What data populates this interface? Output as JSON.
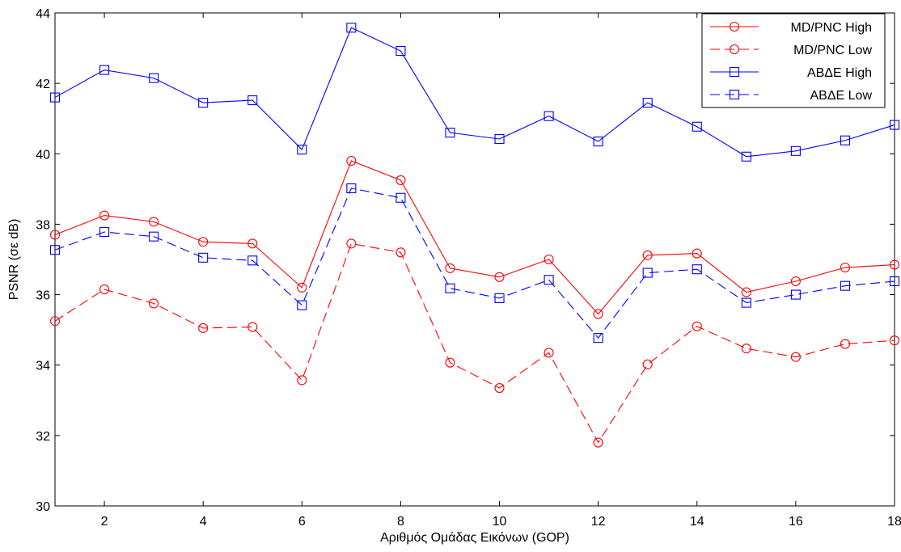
{
  "chart_data": {
    "type": "line",
    "title": "",
    "xlabel": "Αριθμός Ομάδας Εικόνων (GOP)",
    "ylabel": "PSNR (σε dB)",
    "xlim": [
      1,
      18
    ],
    "ylim": [
      30,
      44
    ],
    "xticks": [
      2,
      4,
      6,
      8,
      10,
      12,
      14,
      16,
      18
    ],
    "yticks": [
      30,
      32,
      34,
      36,
      38,
      40,
      42,
      44
    ],
    "grid": false,
    "legend_position": "top-right",
    "x": [
      1,
      2,
      3,
      4,
      5,
      6,
      7,
      8,
      9,
      10,
      11,
      12,
      13,
      14,
      15,
      16,
      17,
      18
    ],
    "series": [
      {
        "name": "MD/PNC High",
        "color": "#ff0000",
        "line_style": "solid",
        "marker": "circle",
        "values": [
          37.7,
          38.25,
          38.07,
          37.5,
          37.45,
          36.2,
          39.8,
          39.25,
          36.75,
          36.5,
          37.0,
          35.45,
          37.12,
          37.17,
          36.07,
          36.38,
          36.77,
          36.85
        ]
      },
      {
        "name": "MD/PNC Low",
        "color": "#ff0000",
        "line_style": "dashed",
        "marker": "circle",
        "values": [
          35.25,
          36.15,
          35.75,
          35.05,
          35.08,
          33.57,
          37.45,
          37.2,
          34.07,
          33.35,
          34.35,
          31.8,
          34.02,
          35.1,
          34.47,
          34.23,
          34.6,
          34.7
        ]
      },
      {
        "name": "ΑΒΔΕ High",
        "color": "#0000ff",
        "line_style": "solid",
        "marker": "square",
        "values": [
          41.6,
          42.38,
          42.15,
          41.45,
          41.52,
          40.12,
          43.58,
          42.92,
          40.6,
          40.42,
          41.07,
          40.35,
          41.45,
          40.77,
          39.92,
          40.08,
          40.38,
          40.82
        ]
      },
      {
        "name": "ΑΒΔΕ Low",
        "color": "#0000ff",
        "line_style": "dashed",
        "marker": "square",
        "values": [
          37.27,
          37.78,
          37.65,
          37.05,
          36.97,
          35.7,
          39.02,
          38.75,
          36.18,
          35.9,
          36.42,
          34.77,
          36.62,
          36.72,
          35.77,
          36.0,
          36.25,
          36.38
        ]
      }
    ]
  }
}
